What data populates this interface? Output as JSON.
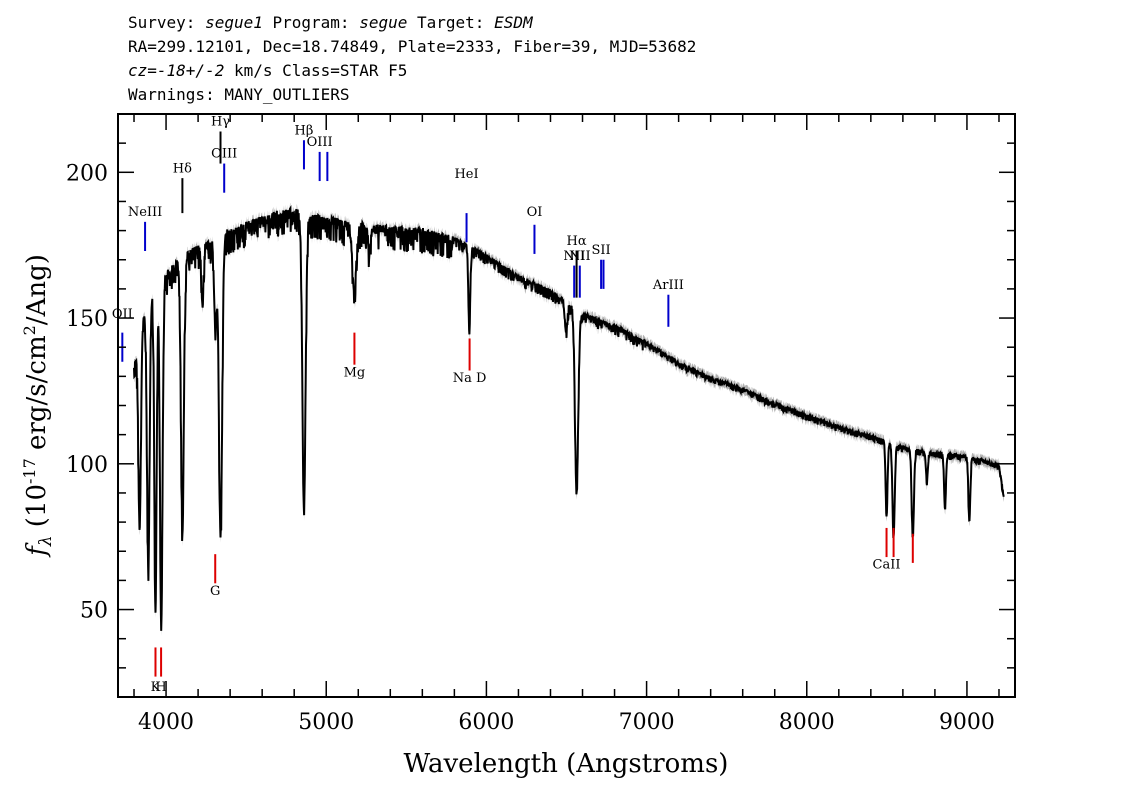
{
  "header": {
    "line1_survey_label": "Survey: ",
    "line1_survey": "segue1",
    "line1_program_label": " Program: ",
    "line1_program": "segue",
    "line1_target_label": " Target: ",
    "line1_target": "ESDM",
    "line2": "RA=299.12101, Dec=18.74849, Plate=2333, Fiber=39, MJD=53682",
    "line3_cz": "cz=-18+/-2",
    "line3_rest": " km/s Class=STAR F5",
    "line4": "Warnings: MANY_OUTLIERS"
  },
  "chart_data": {
    "type": "line",
    "xlabel": "Wavelength (Angstroms)",
    "ylabel": "f_λ (10^-17 erg/s/cm^2/Ang)",
    "xlim": [
      3700,
      9300
    ],
    "ylim": [
      20,
      220
    ],
    "x_ticks": [
      4000,
      5000,
      6000,
      7000,
      8000,
      9000
    ],
    "y_ticks": [
      50,
      100,
      150,
      200
    ],
    "colors": {
      "spectrum": "#000000",
      "error": "#b0b0b0",
      "emission": "#0000cc",
      "absorption": "#dd0000"
    },
    "continuum": [
      [
        3800,
        135
      ],
      [
        3850,
        150
      ],
      [
        3900,
        158
      ],
      [
        4000,
        166
      ],
      [
        4100,
        172
      ],
      [
        4200,
        175
      ],
      [
        4300,
        178
      ],
      [
        4400,
        181
      ],
      [
        4500,
        183
      ],
      [
        4600,
        185
      ],
      [
        4700,
        187
      ],
      [
        4800,
        188
      ],
      [
        4900,
        186
      ],
      [
        5000,
        185
      ],
      [
        5200,
        183
      ],
      [
        5400,
        182
      ],
      [
        5600,
        181
      ],
      [
        5800,
        178
      ],
      [
        6000,
        172
      ],
      [
        6200,
        165
      ],
      [
        6400,
        160
      ],
      [
        6600,
        152
      ],
      [
        6800,
        148
      ],
      [
        7000,
        142
      ],
      [
        7200,
        135
      ],
      [
        7400,
        130
      ],
      [
        7600,
        126
      ],
      [
        7800,
        121
      ],
      [
        8000,
        117
      ],
      [
        8200,
        113
      ],
      [
        8400,
        110
      ],
      [
        8600,
        106
      ],
      [
        8800,
        104
      ],
      [
        9000,
        103
      ],
      [
        9200,
        100
      ],
      [
        9230,
        89
      ]
    ],
    "absorption_features": [
      {
        "center": 3835,
        "depth": 65,
        "width": 8
      },
      {
        "center": 3889,
        "depth": 90,
        "width": 8
      },
      {
        "center": 3934,
        "depth": 110,
        "width": 7
      },
      {
        "center": 3970,
        "depth": 118,
        "width": 8
      },
      {
        "center": 4102,
        "depth": 92,
        "width": 9
      },
      {
        "center": 4227,
        "depth": 20,
        "width": 6
      },
      {
        "center": 4308,
        "depth": 30,
        "width": 8
      },
      {
        "center": 4340,
        "depth": 102,
        "width": 10
      },
      {
        "center": 4861,
        "depth": 100,
        "width": 10
      },
      {
        "center": 5175,
        "depth": 22,
        "width": 12
      },
      {
        "center": 5270,
        "depth": 10,
        "width": 6
      },
      {
        "center": 5893,
        "depth": 28,
        "width": 6
      },
      {
        "center": 6497,
        "depth": 10,
        "width": 8
      },
      {
        "center": 6563,
        "depth": 62,
        "width": 10
      },
      {
        "center": 8498,
        "depth": 25,
        "width": 6
      },
      {
        "center": 8542,
        "depth": 32,
        "width": 7
      },
      {
        "center": 8662,
        "depth": 30,
        "width": 7
      },
      {
        "center": 8750,
        "depth": 10,
        "width": 6
      },
      {
        "center": 8863,
        "depth": 18,
        "width": 6
      },
      {
        "center": 9015,
        "depth": 22,
        "width": 6
      }
    ],
    "emission_lines": [
      {
        "label": "OII",
        "wavelength": 3727,
        "y1": 135,
        "y2": 145,
        "label_y": 150
      },
      {
        "label": "NeIII",
        "wavelength": 3869,
        "y1": 173,
        "y2": 183,
        "label_y": 185
      },
      {
        "label": "Hδ",
        "wavelength": 4102,
        "y1": 186,
        "y2": 198,
        "label_y": 200,
        "color": "#000000"
      },
      {
        "label": "Hγ",
        "wavelength": 4340,
        "y1": 203,
        "y2": 214,
        "label_y": 216,
        "color": "#000000"
      },
      {
        "label": "OIII",
        "wavelength": 4363,
        "y1": 193,
        "y2": 203,
        "label_y": 205
      },
      {
        "label": "Hβ",
        "wavelength": 4861,
        "y1": 201,
        "y2": 211,
        "label_y": 213
      },
      {
        "label": "OIII",
        "wavelength": 4959,
        "y1": 197,
        "y2": 207,
        "label_y": 209
      },
      {
        "label": "OIII",
        "wavelength": 5007,
        "y1": 197,
        "y2": 207,
        "label_y": 209,
        "no_label": true
      },
      {
        "label": "HeI",
        "wavelength": 5876,
        "y1": 176,
        "y2": 186,
        "label_y": 198
      },
      {
        "label": "OI",
        "wavelength": 6300,
        "y1": 172,
        "y2": 182,
        "label_y": 185
      },
      {
        "label": "NII",
        "wavelength": 6548,
        "y1": 157,
        "y2": 168,
        "label_y": 170
      },
      {
        "label": "Hα",
        "wavelength": 6563,
        "y1": 157,
        "y2": 173,
        "label_y": 175,
        "color": "#000000"
      },
      {
        "label": "NII",
        "wavelength": 6583,
        "y1": 157,
        "y2": 168,
        "label_y": 170
      },
      {
        "label": "SII",
        "wavelength": 6716,
        "y1": 160,
        "y2": 170,
        "label_y": 172
      },
      {
        "label": "SII",
        "wavelength": 6731,
        "y1": 160,
        "y2": 170,
        "label_y": 172,
        "no_label": true
      },
      {
        "label": "ArIII",
        "wavelength": 7136,
        "y1": 147,
        "y2": 158,
        "label_y": 160
      }
    ],
    "absorption_lines": [
      {
        "label": "K",
        "wavelength": 3934,
        "y1": 27,
        "y2": 37,
        "label_y": 22
      },
      {
        "label": "H",
        "wavelength": 3969,
        "y1": 27,
        "y2": 37,
        "label_y": 22
      },
      {
        "label": "G",
        "wavelength": 4307,
        "y1": 59,
        "y2": 69,
        "label_y": 55
      },
      {
        "label": "Mg",
        "wavelength": 5176,
        "y1": 134,
        "y2": 145,
        "label_y": 130
      },
      {
        "label": "Na D",
        "wavelength": 5895,
        "y1": 132,
        "y2": 143,
        "label_y": 128
      },
      {
        "label": "CaII",
        "wavelength": 8498,
        "y1": 68,
        "y2": 78,
        "label_y": 64
      },
      {
        "label": "CaII",
        "wavelength": 8542,
        "y1": 68,
        "y2": 78,
        "label_y": 64,
        "no_label": true
      },
      {
        "label": "CaII",
        "wavelength": 8662,
        "y1": 66,
        "y2": 76,
        "label_y": 64,
        "no_label": true
      }
    ]
  }
}
